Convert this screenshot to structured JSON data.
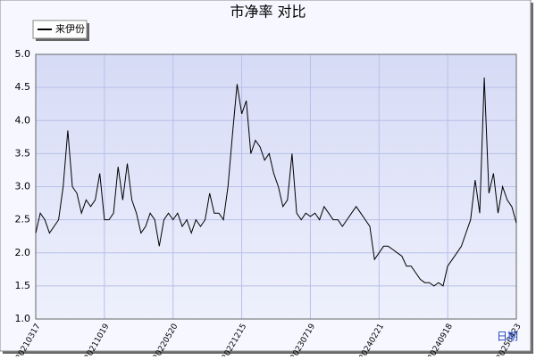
{
  "chart_data": {
    "type": "line",
    "title": "市净率 对比",
    "x_label": "日期",
    "categories": [
      "20210317",
      null,
      null,
      null,
      null,
      null,
      null,
      null,
      null,
      null,
      null,
      null,
      null,
      null,
      null,
      "20211019",
      null,
      null,
      null,
      null,
      null,
      null,
      null,
      null,
      null,
      null,
      null,
      null,
      null,
      null,
      "20220520",
      null,
      null,
      null,
      null,
      null,
      null,
      null,
      null,
      null,
      null,
      null,
      null,
      null,
      null,
      "20221215",
      null,
      null,
      null,
      null,
      null,
      null,
      null,
      null,
      null,
      null,
      null,
      null,
      null,
      null,
      "20230719",
      null,
      null,
      null,
      null,
      null,
      null,
      null,
      null,
      null,
      null,
      null,
      null,
      null,
      null,
      "20240221",
      null,
      null,
      null,
      null,
      null,
      null,
      null,
      null,
      null,
      null,
      null,
      null,
      null,
      null,
      "20240918",
      null,
      null,
      null,
      null,
      null,
      null,
      null,
      null,
      null,
      null,
      null,
      null,
      null,
      null,
      "20250423"
    ],
    "series": [
      {
        "name": "来伊份",
        "color": "#000000",
        "values": [
          2.3,
          2.6,
          2.5,
          2.3,
          2.4,
          2.5,
          3.0,
          3.85,
          3.0,
          2.9,
          2.6,
          2.8,
          2.7,
          2.8,
          3.2,
          2.5,
          2.5,
          2.6,
          3.3,
          2.8,
          3.35,
          2.8,
          2.6,
          2.3,
          2.4,
          2.6,
          2.5,
          2.1,
          2.5,
          2.6,
          2.5,
          2.6,
          2.4,
          2.5,
          2.3,
          2.5,
          2.4,
          2.5,
          2.9,
          2.6,
          2.6,
          2.5,
          3.0,
          3.8,
          4.55,
          4.1,
          4.3,
          3.5,
          3.7,
          3.6,
          3.4,
          3.5,
          3.2,
          3.0,
          2.7,
          2.8,
          3.5,
          2.6,
          2.5,
          2.6,
          2.55,
          2.6,
          2.5,
          2.7,
          2.6,
          2.5,
          2.5,
          2.4,
          2.5,
          2.6,
          2.7,
          2.6,
          2.5,
          2.4,
          1.9,
          2.0,
          2.1,
          2.1,
          2.05,
          2.0,
          1.95,
          1.8,
          1.8,
          1.7,
          1.6,
          1.55,
          1.55,
          1.5,
          1.55,
          1.5,
          1.8,
          1.9,
          2.0,
          2.1,
          2.3,
          2.5,
          3.1,
          2.6,
          4.65,
          2.9,
          3.2,
          2.6,
          3.0,
          2.8,
          2.7,
          2.45
        ]
      }
    ],
    "ylim": [
      1.0,
      5.0
    ],
    "yticks": [
      {
        "value": 1.0,
        "label": "1.0"
      },
      {
        "value": 1.5,
        "label": "1.5"
      },
      {
        "value": 2.0,
        "label": "2.0"
      },
      {
        "value": 2.5,
        "label": "2.5"
      },
      {
        "value": 3.0,
        "label": "3.0"
      },
      {
        "value": 3.5,
        "label": "3.5"
      },
      {
        "value": 4.0,
        "label": "4.0"
      },
      {
        "value": 4.5,
        "label": "4.5"
      },
      {
        "value": 5.0,
        "label": "5.0"
      }
    ],
    "grid": true,
    "legend": "top-left"
  }
}
